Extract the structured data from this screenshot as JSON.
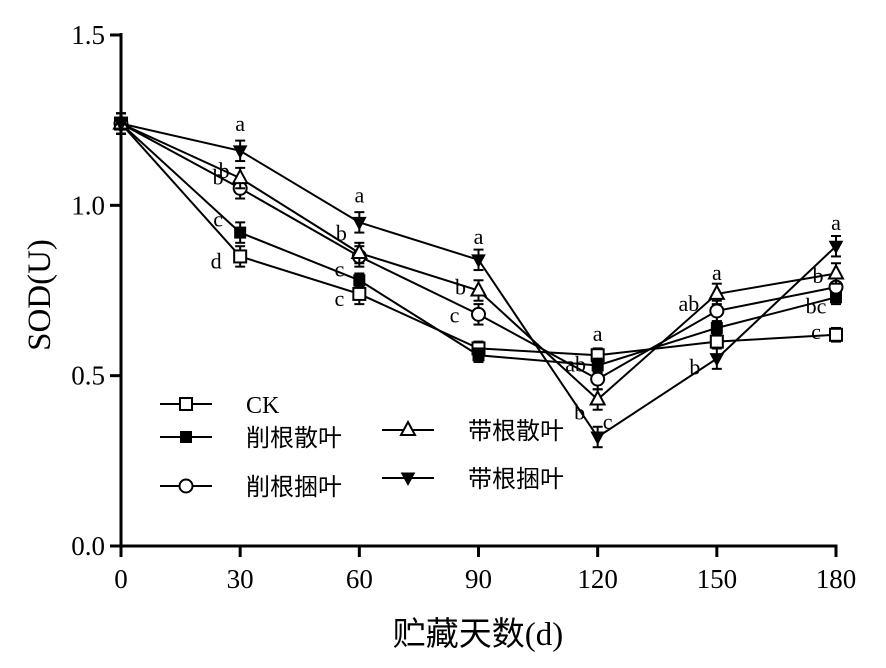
{
  "chart_data": {
    "type": "line",
    "xlabel": "贮藏天数(d)",
    "ylabel": "SOD(U)",
    "x": [
      0,
      30,
      60,
      90,
      120,
      150,
      180
    ],
    "xticks": [
      "0",
      "30",
      "60",
      "90",
      "120",
      "150",
      "180"
    ],
    "yticks": [
      "0.0",
      "0.5",
      "1.0",
      "1.5"
    ],
    "xlim": [
      0,
      180
    ],
    "ylim": [
      0,
      1.5
    ],
    "legend_position": "bottom-left",
    "series": [
      {
        "name": "CK",
        "marker": "square-open",
        "values": [
          1.24,
          0.85,
          0.74,
          0.58,
          0.56,
          0.6,
          0.62
        ],
        "errors": [
          0.03,
          0.03,
          0.03,
          0.02,
          0.02,
          0.02,
          0.02
        ],
        "labels": [
          "",
          "d",
          "c",
          "",
          "a",
          "",
          "c"
        ]
      },
      {
        "name": "削根散叶",
        "marker": "square-filled",
        "values": [
          1.24,
          0.92,
          0.78,
          0.56,
          0.53,
          0.64,
          0.73
        ],
        "errors": [
          0.03,
          0.03,
          0.02,
          0.02,
          0.02,
          0.02,
          0.02
        ],
        "labels": [
          "",
          "c",
          "c",
          "",
          "ab",
          "",
          "bc"
        ]
      },
      {
        "name": "削根捆叶",
        "marker": "circle-open",
        "values": [
          1.24,
          1.05,
          0.85,
          0.68,
          0.49,
          0.69,
          0.76
        ],
        "errors": [
          0.03,
          0.03,
          0.03,
          0.03,
          0.03,
          0.03,
          0.03
        ],
        "labels": [
          "",
          "b",
          "b",
          "c",
          "",
          "ab",
          "b"
        ]
      },
      {
        "name": "带根散叶",
        "marker": "triangle-up-open",
        "values": [
          1.24,
          1.08,
          0.86,
          0.75,
          0.43,
          0.74,
          0.8
        ],
        "errors": [
          0.03,
          0.03,
          0.03,
          0.03,
          0.03,
          0.03,
          0.03
        ],
        "labels": [
          "",
          "b",
          "",
          "b",
          "b",
          "a",
          ""
        ]
      },
      {
        "name": "带根捆叶",
        "marker": "triangle-down-filled",
        "values": [
          1.24,
          1.16,
          0.95,
          0.84,
          0.32,
          0.55,
          0.88
        ],
        "errors": [
          0.03,
          0.03,
          0.03,
          0.03,
          0.03,
          0.03,
          0.03
        ],
        "labels": [
          "",
          "a",
          "a",
          "a",
          "c",
          "b",
          "a"
        ]
      }
    ]
  }
}
